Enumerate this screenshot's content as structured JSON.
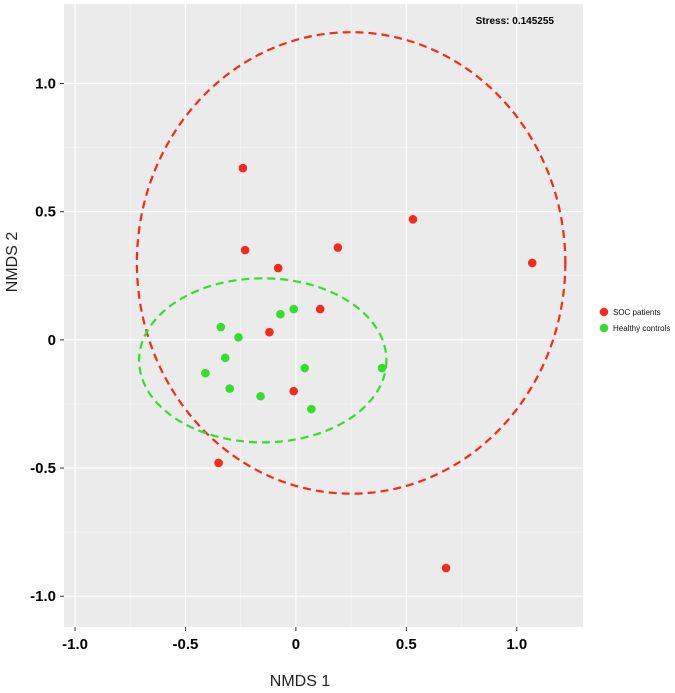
{
  "chart_data": {
    "type": "scatter",
    "title": "",
    "xlabel": "NMDS 1",
    "ylabel": "NMDS 2",
    "annotation": "Stress: 0.145255",
    "xlim": [
      -1.05,
      1.3
    ],
    "ylim": [
      -1.12,
      1.31
    ],
    "xticks": [
      -1.0,
      -0.5,
      0,
      0.5,
      1.0
    ],
    "xtick_labels": [
      "-1.0",
      "-0.5",
      "0",
      "0.5",
      "1.0"
    ],
    "yticks": [
      -1.0,
      -0.5,
      0,
      0.5,
      1.0
    ],
    "ytick_labels": [
      "-1.0",
      "-0.5",
      "0",
      "0.5",
      "1.0"
    ],
    "grid": true,
    "legend_position": "right",
    "series": [
      {
        "name": "SOC patients",
        "color": "#f52a1d",
        "points": [
          [
            -0.24,
            0.67
          ],
          [
            0.53,
            0.47
          ],
          [
            -0.23,
            0.35
          ],
          [
            0.19,
            0.36
          ],
          [
            -0.08,
            0.28
          ],
          [
            1.07,
            0.3
          ],
          [
            0.11,
            0.12
          ],
          [
            -0.12,
            0.03
          ],
          [
            -0.01,
            -0.2
          ],
          [
            -0.35,
            -0.48
          ],
          [
            0.68,
            -0.89
          ]
        ],
        "ellipse": {
          "cx": 0.25,
          "cy": 0.3,
          "rx": 0.97,
          "ry": 0.9
        }
      },
      {
        "name": "Healthy controls",
        "color": "#31e02a",
        "points": [
          [
            -0.34,
            0.05
          ],
          [
            -0.26,
            0.01
          ],
          [
            -0.07,
            0.1
          ],
          [
            -0.01,
            0.12
          ],
          [
            -0.32,
            -0.07
          ],
          [
            0.04,
            -0.11
          ],
          [
            0.39,
            -0.11
          ],
          [
            -0.41,
            -0.13
          ],
          [
            -0.3,
            -0.19
          ],
          [
            -0.16,
            -0.22
          ],
          [
            0.07,
            -0.27
          ]
        ],
        "ellipse": {
          "cx": -0.15,
          "cy": -0.08,
          "rx": 0.56,
          "ry": 0.32
        }
      }
    ]
  }
}
